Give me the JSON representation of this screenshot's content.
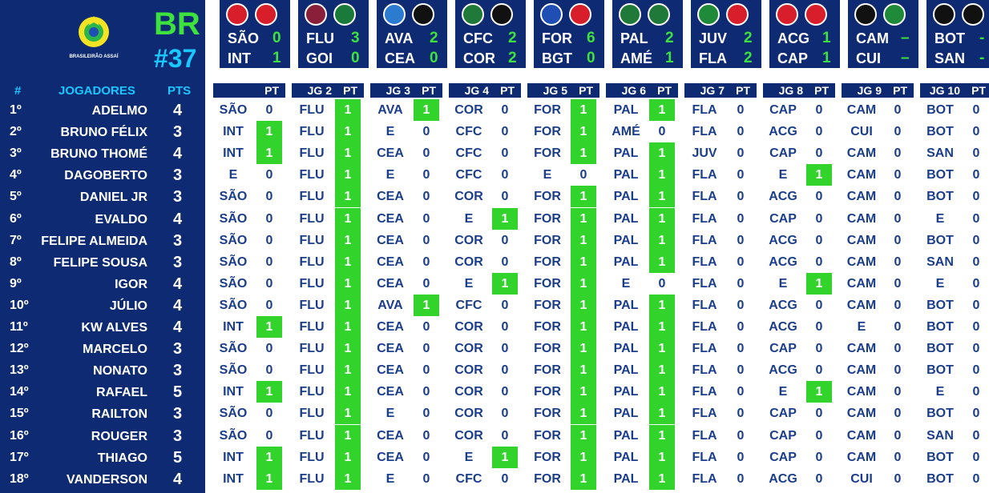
{
  "round": {
    "league": "BR",
    "number": "#37",
    "logo_text": "BRASILEIRÃO ASSAÍ"
  },
  "left_header": {
    "rank": "#",
    "players": "JOGADORES",
    "pts": "PTS"
  },
  "matches": [
    {
      "home": "SÃO",
      "home_score": "0",
      "away": "INT",
      "away_score": "1",
      "home_color": "#d81e2a",
      "away_color": "#d81e2a"
    },
    {
      "home": "FLU",
      "home_score": "3",
      "away": "GOI",
      "away_score": "0",
      "home_color": "#8a1f3a",
      "away_color": "#1a7a3a"
    },
    {
      "home": "AVA",
      "home_score": "2",
      "away": "CEA",
      "away_score": "0",
      "home_color": "#2b7bd1",
      "away_color": "#111111"
    },
    {
      "home": "CFC",
      "home_score": "2",
      "away": "COR",
      "away_score": "2",
      "home_color": "#1f7a3a",
      "away_color": "#111111"
    },
    {
      "home": "FOR",
      "home_score": "6",
      "away": "BGT",
      "away_score": "0",
      "home_color": "#1f4fb5",
      "away_color": "#d81e2a"
    },
    {
      "home": "PAL",
      "home_score": "2",
      "away": "AMÉ",
      "away_score": "1",
      "home_color": "#1f7a3a",
      "away_color": "#1f7a3a"
    },
    {
      "home": "JUV",
      "home_score": "2",
      "away": "FLA",
      "away_score": "2",
      "home_color": "#1f8a3a",
      "away_color": "#d81e2a"
    },
    {
      "home": "ACG",
      "home_score": "1",
      "away": "CAP",
      "away_score": "1",
      "home_color": "#d81e2a",
      "away_color": "#d81e2a"
    },
    {
      "home": "CAM",
      "home_score": "–",
      "away": "CUI",
      "away_score": "–",
      "home_color": "#111111",
      "away_color": "#1f8a3a"
    },
    {
      "home": "BOT",
      "home_score": "-",
      "away": "SAN",
      "away_score": "-",
      "home_color": "#111111",
      "away_color": "#111111"
    }
  ],
  "grid_header": {
    "pt_label": "PT",
    "jg_labels": [
      "",
      "JG 2",
      "JG 3",
      "JG 4",
      "JG 5",
      "JG 6",
      "JG 7",
      "JG 8",
      "JG 9",
      "JG 10"
    ]
  },
  "players": [
    {
      "rank": "1º",
      "name": "ADELMO",
      "pts": "4",
      "picks": [
        [
          "SÃO",
          "0"
        ],
        [
          "FLU",
          "1"
        ],
        [
          "AVA",
          "1"
        ],
        [
          "COR",
          "0"
        ],
        [
          "FOR",
          "1"
        ],
        [
          "PAL",
          "1"
        ],
        [
          "FLA",
          "0"
        ],
        [
          "CAP",
          "0"
        ],
        [
          "CAM",
          "0"
        ],
        [
          "BOT",
          "0"
        ]
      ]
    },
    {
      "rank": "2º",
      "name": "BRUNO FÉLIX",
      "pts": "3",
      "picks": [
        [
          "INT",
          "1"
        ],
        [
          "FLU",
          "1"
        ],
        [
          "E",
          "0"
        ],
        [
          "CFC",
          "0"
        ],
        [
          "FOR",
          "1"
        ],
        [
          "AMÉ",
          "0"
        ],
        [
          "FLA",
          "0"
        ],
        [
          "ACG",
          "0"
        ],
        [
          "CUI",
          "0"
        ],
        [
          "BOT",
          "0"
        ]
      ]
    },
    {
      "rank": "3º",
      "name": "BRUNO THOMÉ",
      "pts": "4",
      "picks": [
        [
          "INT",
          "1"
        ],
        [
          "FLU",
          "1"
        ],
        [
          "CEA",
          "0"
        ],
        [
          "CFC",
          "0"
        ],
        [
          "FOR",
          "1"
        ],
        [
          "PAL",
          "1"
        ],
        [
          "JUV",
          "0"
        ],
        [
          "CAP",
          "0"
        ],
        [
          "CAM",
          "0"
        ],
        [
          "SAN",
          "0"
        ]
      ]
    },
    {
      "rank": "4º",
      "name": "DAGOBERTO",
      "pts": "3",
      "picks": [
        [
          "E",
          "0"
        ],
        [
          "FLU",
          "1"
        ],
        [
          "E",
          "0"
        ],
        [
          "CFC",
          "0"
        ],
        [
          "E",
          "0"
        ],
        [
          "PAL",
          "1"
        ],
        [
          "FLA",
          "0"
        ],
        [
          "E",
          "1"
        ],
        [
          "CAM",
          "0"
        ],
        [
          "BOT",
          "0"
        ]
      ]
    },
    {
      "rank": "5º",
      "name": "DANIEL JR",
      "pts": "3",
      "picks": [
        [
          "SÃO",
          "0"
        ],
        [
          "FLU",
          "1"
        ],
        [
          "CEA",
          "0"
        ],
        [
          "COR",
          "0"
        ],
        [
          "FOR",
          "1"
        ],
        [
          "PAL",
          "1"
        ],
        [
          "FLA",
          "0"
        ],
        [
          "ACG",
          "0"
        ],
        [
          "CAM",
          "0"
        ],
        [
          "BOT",
          "0"
        ]
      ]
    },
    {
      "rank": "6º",
      "name": "EVALDO",
      "pts": "4",
      "picks": [
        [
          "SÃO",
          "0"
        ],
        [
          "FLU",
          "1"
        ],
        [
          "CEA",
          "0"
        ],
        [
          "E",
          "1"
        ],
        [
          "FOR",
          "1"
        ],
        [
          "PAL",
          "1"
        ],
        [
          "FLA",
          "0"
        ],
        [
          "CAP",
          "0"
        ],
        [
          "CAM",
          "0"
        ],
        [
          "E",
          "0"
        ]
      ]
    },
    {
      "rank": "7º",
      "name": "FELIPE ALMEIDA",
      "pts": "3",
      "picks": [
        [
          "SÃO",
          "0"
        ],
        [
          "FLU",
          "1"
        ],
        [
          "CEA",
          "0"
        ],
        [
          "COR",
          "0"
        ],
        [
          "FOR",
          "1"
        ],
        [
          "PAL",
          "1"
        ],
        [
          "FLA",
          "0"
        ],
        [
          "ACG",
          "0"
        ],
        [
          "CAM",
          "0"
        ],
        [
          "BOT",
          "0"
        ]
      ]
    },
    {
      "rank": "8º",
      "name": "FELIPE SOUSA",
      "pts": "3",
      "picks": [
        [
          "SÃO",
          "0"
        ],
        [
          "FLU",
          "1"
        ],
        [
          "CEA",
          "0"
        ],
        [
          "COR",
          "0"
        ],
        [
          "FOR",
          "1"
        ],
        [
          "PAL",
          "1"
        ],
        [
          "FLA",
          "0"
        ],
        [
          "ACG",
          "0"
        ],
        [
          "CAM",
          "0"
        ],
        [
          "SAN",
          "0"
        ]
      ]
    },
    {
      "rank": "9º",
      "name": "IGOR",
      "pts": "4",
      "picks": [
        [
          "SÃO",
          "0"
        ],
        [
          "FLU",
          "1"
        ],
        [
          "CEA",
          "0"
        ],
        [
          "E",
          "1"
        ],
        [
          "FOR",
          "1"
        ],
        [
          "E",
          "0"
        ],
        [
          "FLA",
          "0"
        ],
        [
          "E",
          "1"
        ],
        [
          "CAM",
          "0"
        ],
        [
          "E",
          "0"
        ]
      ]
    },
    {
      "rank": "10º",
      "name": "JÚLIO",
      "pts": "4",
      "picks": [
        [
          "SÃO",
          "0"
        ],
        [
          "FLU",
          "1"
        ],
        [
          "AVA",
          "1"
        ],
        [
          "CFC",
          "0"
        ],
        [
          "FOR",
          "1"
        ],
        [
          "PAL",
          "1"
        ],
        [
          "FLA",
          "0"
        ],
        [
          "ACG",
          "0"
        ],
        [
          "CAM",
          "0"
        ],
        [
          "BOT",
          "0"
        ]
      ]
    },
    {
      "rank": "11º",
      "name": "KW ALVES",
      "pts": "4",
      "picks": [
        [
          "INT",
          "1"
        ],
        [
          "FLU",
          "1"
        ],
        [
          "CEA",
          "0"
        ],
        [
          "COR",
          "0"
        ],
        [
          "FOR",
          "1"
        ],
        [
          "PAL",
          "1"
        ],
        [
          "FLA",
          "0"
        ],
        [
          "ACG",
          "0"
        ],
        [
          "E",
          "0"
        ],
        [
          "BOT",
          "0"
        ]
      ]
    },
    {
      "rank": "12º",
      "name": "MARCELO",
      "pts": "3",
      "picks": [
        [
          "SÃO",
          "0"
        ],
        [
          "FLU",
          "1"
        ],
        [
          "CEA",
          "0"
        ],
        [
          "COR",
          "0"
        ],
        [
          "FOR",
          "1"
        ],
        [
          "PAL",
          "1"
        ],
        [
          "FLA",
          "0"
        ],
        [
          "CAP",
          "0"
        ],
        [
          "CAM",
          "0"
        ],
        [
          "BOT",
          "0"
        ]
      ]
    },
    {
      "rank": "13º",
      "name": "NONATO",
      "pts": "3",
      "picks": [
        [
          "SÃO",
          "0"
        ],
        [
          "FLU",
          "1"
        ],
        [
          "CEA",
          "0"
        ],
        [
          "COR",
          "0"
        ],
        [
          "FOR",
          "1"
        ],
        [
          "PAL",
          "1"
        ],
        [
          "FLA",
          "0"
        ],
        [
          "ACG",
          "0"
        ],
        [
          "CAM",
          "0"
        ],
        [
          "BOT",
          "0"
        ]
      ]
    },
    {
      "rank": "14º",
      "name": "RAFAEL",
      "pts": "5",
      "picks": [
        [
          "INT",
          "1"
        ],
        [
          "FLU",
          "1"
        ],
        [
          "CEA",
          "0"
        ],
        [
          "COR",
          "0"
        ],
        [
          "FOR",
          "1"
        ],
        [
          "PAL",
          "1"
        ],
        [
          "FLA",
          "0"
        ],
        [
          "E",
          "1"
        ],
        [
          "CAM",
          "0"
        ],
        [
          "E",
          "0"
        ]
      ]
    },
    {
      "rank": "15º",
      "name": "RAILTON",
      "pts": "3",
      "picks": [
        [
          "SÃO",
          "0"
        ],
        [
          "FLU",
          "1"
        ],
        [
          "E",
          "0"
        ],
        [
          "COR",
          "0"
        ],
        [
          "FOR",
          "1"
        ],
        [
          "PAL",
          "1"
        ],
        [
          "FLA",
          "0"
        ],
        [
          "CAP",
          "0"
        ],
        [
          "CAM",
          "0"
        ],
        [
          "BOT",
          "0"
        ]
      ]
    },
    {
      "rank": "16º",
      "name": "ROUGER",
      "pts": "3",
      "picks": [
        [
          "SÃO",
          "0"
        ],
        [
          "FLU",
          "1"
        ],
        [
          "CEA",
          "0"
        ],
        [
          "COR",
          "0"
        ],
        [
          "FOR",
          "1"
        ],
        [
          "PAL",
          "1"
        ],
        [
          "FLA",
          "0"
        ],
        [
          "CAP",
          "0"
        ],
        [
          "CAM",
          "0"
        ],
        [
          "SAN",
          "0"
        ]
      ]
    },
    {
      "rank": "17º",
      "name": "THIAGO",
      "pts": "5",
      "picks": [
        [
          "INT",
          "1"
        ],
        [
          "FLU",
          "1"
        ],
        [
          "CEA",
          "0"
        ],
        [
          "E",
          "1"
        ],
        [
          "FOR",
          "1"
        ],
        [
          "PAL",
          "1"
        ],
        [
          "FLA",
          "0"
        ],
        [
          "CAP",
          "0"
        ],
        [
          "CAM",
          "0"
        ],
        [
          "BOT",
          "0"
        ]
      ]
    },
    {
      "rank": "18º",
      "name": "VANDERSON",
      "pts": "4",
      "picks": [
        [
          "INT",
          "1"
        ],
        [
          "FLU",
          "1"
        ],
        [
          "E",
          "0"
        ],
        [
          "CFC",
          "0"
        ],
        [
          "FOR",
          "1"
        ],
        [
          "PAL",
          "1"
        ],
        [
          "FLA",
          "0"
        ],
        [
          "ACG",
          "0"
        ],
        [
          "CUI",
          "0"
        ],
        [
          "BOT",
          "0"
        ]
      ]
    }
  ]
}
